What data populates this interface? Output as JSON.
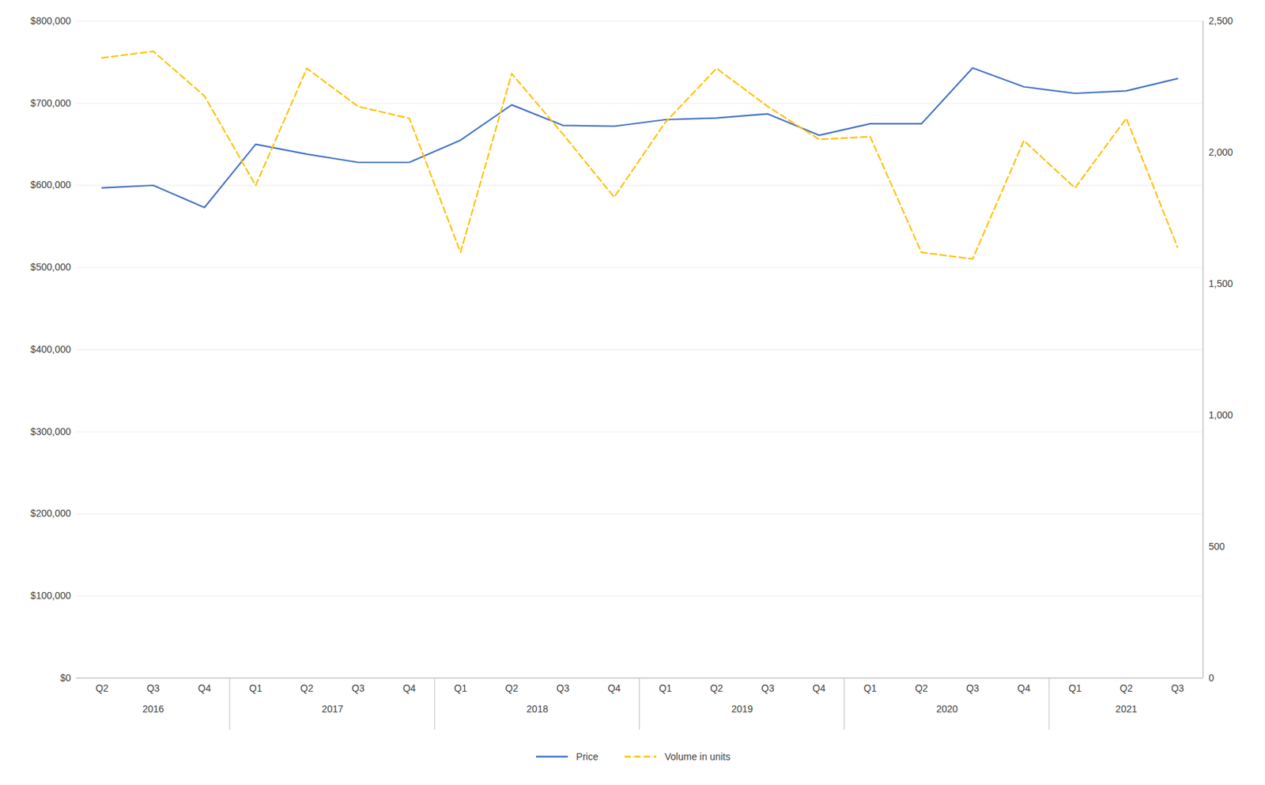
{
  "chart_data": {
    "type": "line",
    "categories": [
      "Q2",
      "Q3",
      "Q4",
      "Q1",
      "Q2",
      "Q3",
      "Q4",
      "Q1",
      "Q2",
      "Q3",
      "Q4",
      "Q1",
      "Q2",
      "Q3",
      "Q4",
      "Q1",
      "Q2",
      "Q3",
      "Q4",
      "Q1",
      "Q2",
      "Q3"
    ],
    "groups": [
      {
        "label": "2016",
        "count": 3
      },
      {
        "label": "2017",
        "count": 4
      },
      {
        "label": "2018",
        "count": 4
      },
      {
        "label": "2019",
        "count": 4
      },
      {
        "label": "2020",
        "count": 4
      },
      {
        "label": "2021",
        "count": 3
      }
    ],
    "series": [
      {
        "name": "Price",
        "color": "#4472C4",
        "line_style": "solid",
        "values": [
          597000,
          600000,
          573000,
          650000,
          638000,
          628000,
          628000,
          655000,
          698000,
          673000,
          672000,
          680000,
          682000,
          687000,
          661000,
          675000,
          675000,
          743000,
          720000,
          712000,
          715000,
          730000
        ]
      },
      {
        "name": "Volume in units",
        "color": "#FFC000",
        "line_style": "dashed",
        "axis": "y2",
        "values": [
          2360,
          2385,
          2215,
          1875,
          2320,
          2175,
          2130,
          1620,
          2300,
          2070,
          1830,
          2115,
          2320,
          2175,
          2050,
          2060,
          1620,
          1595,
          2045,
          1865,
          2130,
          1640
        ]
      }
    ],
    "ylim": [
      0,
      800000
    ],
    "yticks": [
      {
        "value": 0,
        "label": "$0"
      },
      {
        "value": 100000,
        "label": "$100,000"
      },
      {
        "value": 200000,
        "label": "$200,000"
      },
      {
        "value": 300000,
        "label": "$300,000"
      },
      {
        "value": 400000,
        "label": "$400,000"
      },
      {
        "value": 500000,
        "label": "$500,000"
      },
      {
        "value": 600000,
        "label": "$600,000"
      },
      {
        "value": 700000,
        "label": "$700,000"
      },
      {
        "value": 800000,
        "label": "$800,000"
      }
    ],
    "y2lim": [
      0,
      2500
    ],
    "y2ticks": [
      0,
      500,
      {
        "value": 1000,
        "label": "1,000"
      },
      {
        "value": 1500,
        "label": "1,500"
      },
      {
        "value": 2000,
        "label": "2,000"
      },
      {
        "value": 2500,
        "label": "2,500"
      }
    ],
    "grid": true,
    "legend": "bottom"
  }
}
